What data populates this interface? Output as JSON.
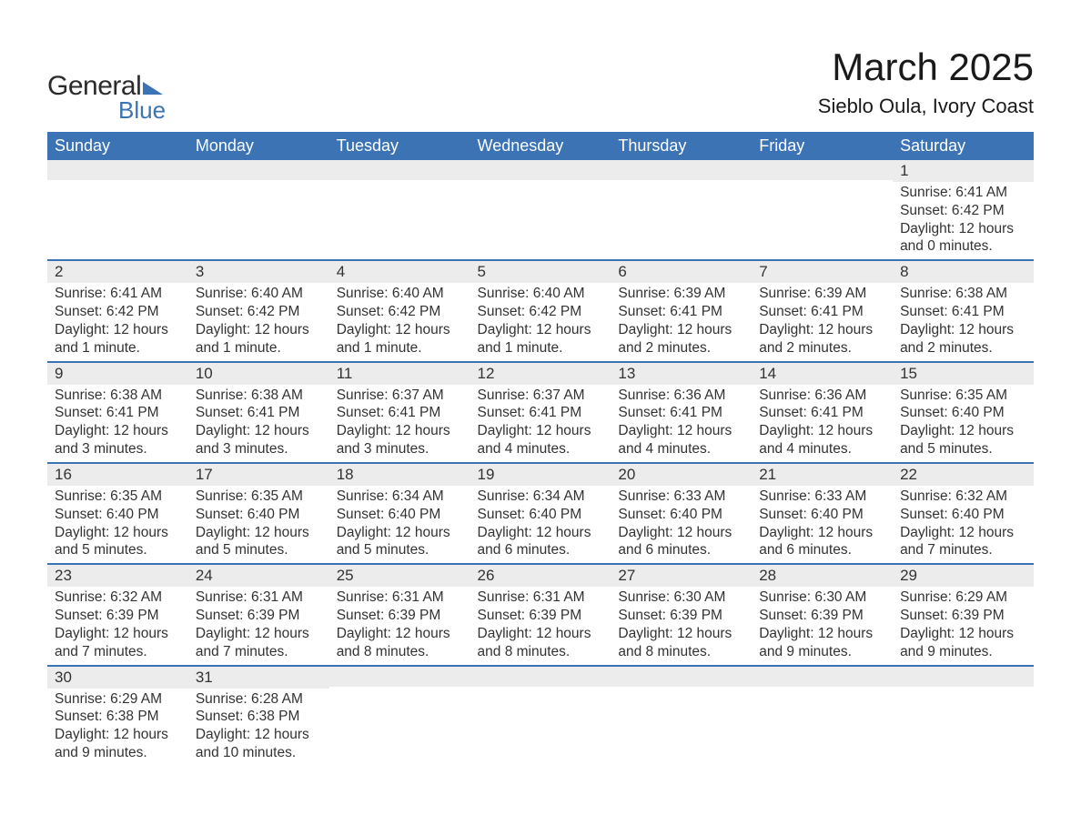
{
  "logo": {
    "text1": "General",
    "text2": "Blue",
    "accent": "#3b73b5"
  },
  "header": {
    "title": "March 2025",
    "location": "Sieblo Oula, Ivory Coast"
  },
  "colors": {
    "header_bg": "#3b73b5",
    "header_text": "#ffffff",
    "stripe_bg": "#ececec",
    "border": "#3b73b5",
    "text": "#333333",
    "background": "#ffffff"
  },
  "weekdays": [
    "Sunday",
    "Monday",
    "Tuesday",
    "Wednesday",
    "Thursday",
    "Friday",
    "Saturday"
  ],
  "weeks": [
    [
      {
        "empty": true
      },
      {
        "empty": true
      },
      {
        "empty": true
      },
      {
        "empty": true
      },
      {
        "empty": true
      },
      {
        "empty": true
      },
      {
        "num": "1",
        "sunrise": "Sunrise: 6:41 AM",
        "sunset": "Sunset: 6:42 PM",
        "daylight": "Daylight: 12 hours and 0 minutes."
      }
    ],
    [
      {
        "num": "2",
        "sunrise": "Sunrise: 6:41 AM",
        "sunset": "Sunset: 6:42 PM",
        "daylight": "Daylight: 12 hours and 1 minute."
      },
      {
        "num": "3",
        "sunrise": "Sunrise: 6:40 AM",
        "sunset": "Sunset: 6:42 PM",
        "daylight": "Daylight: 12 hours and 1 minute."
      },
      {
        "num": "4",
        "sunrise": "Sunrise: 6:40 AM",
        "sunset": "Sunset: 6:42 PM",
        "daylight": "Daylight: 12 hours and 1 minute."
      },
      {
        "num": "5",
        "sunrise": "Sunrise: 6:40 AM",
        "sunset": "Sunset: 6:42 PM",
        "daylight": "Daylight: 12 hours and 1 minute."
      },
      {
        "num": "6",
        "sunrise": "Sunrise: 6:39 AM",
        "sunset": "Sunset: 6:41 PM",
        "daylight": "Daylight: 12 hours and 2 minutes."
      },
      {
        "num": "7",
        "sunrise": "Sunrise: 6:39 AM",
        "sunset": "Sunset: 6:41 PM",
        "daylight": "Daylight: 12 hours and 2 minutes."
      },
      {
        "num": "8",
        "sunrise": "Sunrise: 6:38 AM",
        "sunset": "Sunset: 6:41 PM",
        "daylight": "Daylight: 12 hours and 2 minutes."
      }
    ],
    [
      {
        "num": "9",
        "sunrise": "Sunrise: 6:38 AM",
        "sunset": "Sunset: 6:41 PM",
        "daylight": "Daylight: 12 hours and 3 minutes."
      },
      {
        "num": "10",
        "sunrise": "Sunrise: 6:38 AM",
        "sunset": "Sunset: 6:41 PM",
        "daylight": "Daylight: 12 hours and 3 minutes."
      },
      {
        "num": "11",
        "sunrise": "Sunrise: 6:37 AM",
        "sunset": "Sunset: 6:41 PM",
        "daylight": "Daylight: 12 hours and 3 minutes."
      },
      {
        "num": "12",
        "sunrise": "Sunrise: 6:37 AM",
        "sunset": "Sunset: 6:41 PM",
        "daylight": "Daylight: 12 hours and 4 minutes."
      },
      {
        "num": "13",
        "sunrise": "Sunrise: 6:36 AM",
        "sunset": "Sunset: 6:41 PM",
        "daylight": "Daylight: 12 hours and 4 minutes."
      },
      {
        "num": "14",
        "sunrise": "Sunrise: 6:36 AM",
        "sunset": "Sunset: 6:41 PM",
        "daylight": "Daylight: 12 hours and 4 minutes."
      },
      {
        "num": "15",
        "sunrise": "Sunrise: 6:35 AM",
        "sunset": "Sunset: 6:40 PM",
        "daylight": "Daylight: 12 hours and 5 minutes."
      }
    ],
    [
      {
        "num": "16",
        "sunrise": "Sunrise: 6:35 AM",
        "sunset": "Sunset: 6:40 PM",
        "daylight": "Daylight: 12 hours and 5 minutes."
      },
      {
        "num": "17",
        "sunrise": "Sunrise: 6:35 AM",
        "sunset": "Sunset: 6:40 PM",
        "daylight": "Daylight: 12 hours and 5 minutes."
      },
      {
        "num": "18",
        "sunrise": "Sunrise: 6:34 AM",
        "sunset": "Sunset: 6:40 PM",
        "daylight": "Daylight: 12 hours and 5 minutes."
      },
      {
        "num": "19",
        "sunrise": "Sunrise: 6:34 AM",
        "sunset": "Sunset: 6:40 PM",
        "daylight": "Daylight: 12 hours and 6 minutes."
      },
      {
        "num": "20",
        "sunrise": "Sunrise: 6:33 AM",
        "sunset": "Sunset: 6:40 PM",
        "daylight": "Daylight: 12 hours and 6 minutes."
      },
      {
        "num": "21",
        "sunrise": "Sunrise: 6:33 AM",
        "sunset": "Sunset: 6:40 PM",
        "daylight": "Daylight: 12 hours and 6 minutes."
      },
      {
        "num": "22",
        "sunrise": "Sunrise: 6:32 AM",
        "sunset": "Sunset: 6:40 PM",
        "daylight": "Daylight: 12 hours and 7 minutes."
      }
    ],
    [
      {
        "num": "23",
        "sunrise": "Sunrise: 6:32 AM",
        "sunset": "Sunset: 6:39 PM",
        "daylight": "Daylight: 12 hours and 7 minutes."
      },
      {
        "num": "24",
        "sunrise": "Sunrise: 6:31 AM",
        "sunset": "Sunset: 6:39 PM",
        "daylight": "Daylight: 12 hours and 7 minutes."
      },
      {
        "num": "25",
        "sunrise": "Sunrise: 6:31 AM",
        "sunset": "Sunset: 6:39 PM",
        "daylight": "Daylight: 12 hours and 8 minutes."
      },
      {
        "num": "26",
        "sunrise": "Sunrise: 6:31 AM",
        "sunset": "Sunset: 6:39 PM",
        "daylight": "Daylight: 12 hours and 8 minutes."
      },
      {
        "num": "27",
        "sunrise": "Sunrise: 6:30 AM",
        "sunset": "Sunset: 6:39 PM",
        "daylight": "Daylight: 12 hours and 8 minutes."
      },
      {
        "num": "28",
        "sunrise": "Sunrise: 6:30 AM",
        "sunset": "Sunset: 6:39 PM",
        "daylight": "Daylight: 12 hours and 9 minutes."
      },
      {
        "num": "29",
        "sunrise": "Sunrise: 6:29 AM",
        "sunset": "Sunset: 6:39 PM",
        "daylight": "Daylight: 12 hours and 9 minutes."
      }
    ],
    [
      {
        "num": "30",
        "sunrise": "Sunrise: 6:29 AM",
        "sunset": "Sunset: 6:38 PM",
        "daylight": "Daylight: 12 hours and 9 minutes."
      },
      {
        "num": "31",
        "sunrise": "Sunrise: 6:28 AM",
        "sunset": "Sunset: 6:38 PM",
        "daylight": "Daylight: 12 hours and 10 minutes."
      },
      {
        "empty": true
      },
      {
        "empty": true
      },
      {
        "empty": true
      },
      {
        "empty": true
      },
      {
        "empty": true
      }
    ]
  ]
}
